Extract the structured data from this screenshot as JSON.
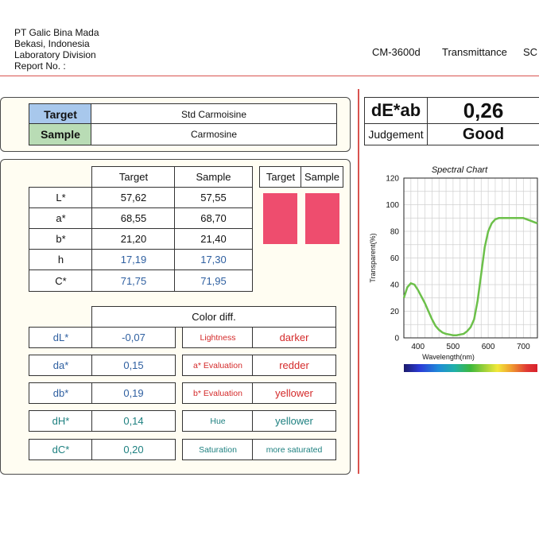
{
  "header": {
    "company": "PT Galic Bina Mada",
    "location": "Bekasi, Indonesia",
    "division": "Laboratory Division",
    "report_no": "Report No. :",
    "instrument": "CM-3600d",
    "mode": "Transmittance",
    "spec": "SC"
  },
  "target_sample": {
    "target_label": "Target",
    "target_value": "Std Carmoisine",
    "sample_label": "Sample",
    "sample_value": "Carmosine"
  },
  "measure_table": {
    "col_target": "Target",
    "col_sample": "Sample",
    "rows": [
      {
        "label": "L*",
        "target": "57,62",
        "sample": "57,55"
      },
      {
        "label": "a*",
        "target": "68,55",
        "sample": "68,70"
      },
      {
        "label": "b*",
        "target": "21,20",
        "sample": "21,40"
      },
      {
        "label": "h",
        "target": "17,19",
        "sample": "17,30"
      },
      {
        "label": "C*",
        "target": "71,75",
        "sample": "71,95"
      }
    ]
  },
  "swatches": {
    "target_label": "Target",
    "sample_label": "Sample",
    "target_color": "#ee4d6e",
    "sample_color": "#ee4d6e"
  },
  "color_diff": {
    "title": "Color diff.",
    "rows": [
      {
        "label": "dL*",
        "value": "-0,07",
        "desc": "Lightness",
        "result": "darker"
      },
      {
        "label": "da*",
        "value": "0,15",
        "desc": "a* Evaluation",
        "result": "redder"
      },
      {
        "label": "db*",
        "value": "0,19",
        "desc": "b* Evaluation",
        "result": "yellower"
      },
      {
        "label": "dH*",
        "value": "0,14",
        "desc": "Hue",
        "result": "yellower"
      },
      {
        "label": "dC*",
        "value": "0,20",
        "desc": "Saturation",
        "result": "more saturated"
      }
    ]
  },
  "summary": {
    "de_label": "dE*ab",
    "de_value": "0,26",
    "judgement_label": "Judgement",
    "judgement_value": "Good"
  },
  "chart_data": {
    "type": "line",
    "title": "Spectral Chart",
    "xlabel": "Wavelength(nm)",
    "ylabel": "Transparent(%)",
    "xlim": [
      360,
      740
    ],
    "ylim": [
      0,
      120
    ],
    "x_ticks": [
      400,
      500,
      600,
      700
    ],
    "y_ticks": [
      0,
      20,
      40,
      60,
      80,
      100,
      120
    ],
    "grid": true,
    "line_color": "#6cc04a",
    "series": [
      {
        "x": [
          360,
          370,
          380,
          390,
          400,
          410,
          420,
          430,
          440,
          450,
          460,
          470,
          480,
          490,
          500,
          510,
          520,
          530,
          540,
          550,
          560,
          570,
          580,
          590,
          600,
          610,
          620,
          630,
          640,
          650,
          660,
          670,
          680,
          690,
          700,
          710,
          720,
          730,
          740
        ],
        "y": [
          30,
          38,
          41,
          40,
          36,
          31,
          26,
          20,
          14,
          9,
          6,
          4,
          3,
          2.5,
          2,
          2,
          2.5,
          3,
          5,
          8,
          14,
          28,
          48,
          68,
          80,
          86,
          89,
          90,
          90,
          90,
          90,
          90,
          90,
          90,
          90,
          89,
          88,
          87,
          86
        ]
      }
    ]
  }
}
